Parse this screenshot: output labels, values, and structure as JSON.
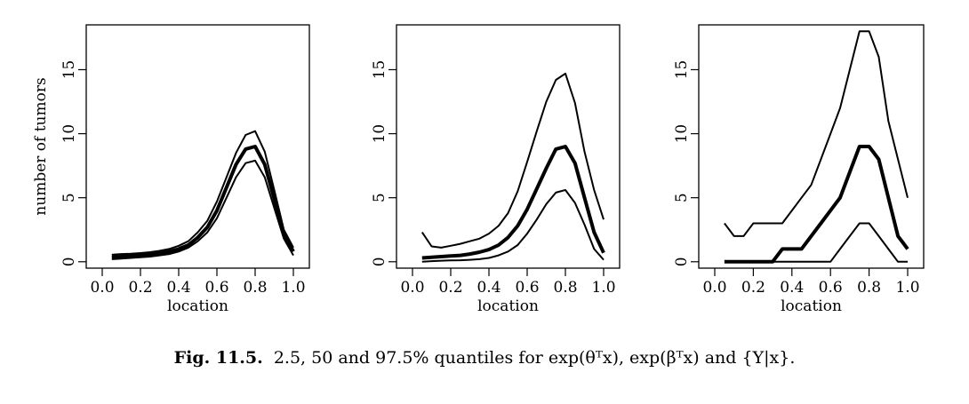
{
  "caption": {
    "label": "Fig. 11.5.",
    "text": "2.5, 50 and 97.5% quantiles for exp(θᵀx), exp(βᵀx) and {Y|x}."
  },
  "chart_data": [
    {
      "type": "line",
      "title": "",
      "xlabel": "location",
      "ylabel": "number of tumors",
      "xlim": [
        0.0,
        1.0
      ],
      "ylim": [
        -0.5,
        18.5
      ],
      "xticks": [
        "0.0",
        "0.2",
        "0.4",
        "0.6",
        "0.8",
        "1.0"
      ],
      "yticks": [
        "0",
        "5",
        "10",
        "15"
      ],
      "x": [
        0.05,
        0.1,
        0.15,
        0.2,
        0.25,
        0.3,
        0.35,
        0.4,
        0.45,
        0.5,
        0.55,
        0.6,
        0.65,
        0.7,
        0.75,
        0.8,
        0.85,
        0.9,
        0.95,
        1.0
      ],
      "series": [
        {
          "role": "lower",
          "values": [
            0.2,
            0.25,
            0.3,
            0.35,
            0.4,
            0.5,
            0.6,
            0.8,
            1.1,
            1.6,
            2.3,
            3.4,
            5.0,
            6.6,
            7.7,
            7.9,
            6.6,
            4.2,
            1.8,
            0.5
          ]
        },
        {
          "role": "median",
          "values": [
            0.35,
            0.4,
            0.45,
            0.5,
            0.55,
            0.65,
            0.8,
            1.0,
            1.3,
            1.9,
            2.7,
            4.0,
            5.8,
            7.6,
            8.8,
            9.0,
            7.6,
            4.9,
            2.1,
            0.8
          ]
        },
        {
          "role": "upper",
          "values": [
            0.55,
            0.6,
            0.62,
            0.68,
            0.75,
            0.85,
            1.0,
            1.25,
            1.6,
            2.3,
            3.2,
            4.7,
            6.6,
            8.5,
            9.9,
            10.2,
            8.6,
            5.6,
            2.5,
            1.1
          ]
        }
      ]
    },
    {
      "type": "line",
      "title": "",
      "xlabel": "location",
      "ylabel": "",
      "xlim": [
        0.0,
        1.0
      ],
      "ylim": [
        -0.5,
        18.5
      ],
      "xticks": [
        "0.0",
        "0.2",
        "0.4",
        "0.6",
        "0.8",
        "1.0"
      ],
      "yticks": [
        "0",
        "5",
        "10",
        "15"
      ],
      "x": [
        0.05,
        0.1,
        0.15,
        0.2,
        0.25,
        0.3,
        0.35,
        0.4,
        0.45,
        0.5,
        0.55,
        0.6,
        0.65,
        0.7,
        0.75,
        0.8,
        0.85,
        0.9,
        0.95,
        1.0
      ],
      "series": [
        {
          "role": "lower",
          "values": [
            0.0,
            0.05,
            0.08,
            0.1,
            0.12,
            0.15,
            0.2,
            0.3,
            0.5,
            0.8,
            1.3,
            2.2,
            3.3,
            4.5,
            5.4,
            5.6,
            4.6,
            2.9,
            1.0,
            0.15
          ]
        },
        {
          "role": "median",
          "values": [
            0.3,
            0.35,
            0.4,
            0.45,
            0.5,
            0.6,
            0.75,
            0.95,
            1.3,
            1.9,
            2.8,
            4.1,
            5.7,
            7.3,
            8.8,
            9.0,
            7.7,
            5.0,
            2.3,
            0.7
          ]
        },
        {
          "role": "upper",
          "values": [
            2.3,
            1.2,
            1.1,
            1.25,
            1.4,
            1.6,
            1.8,
            2.2,
            2.8,
            3.8,
            5.5,
            7.8,
            10.2,
            12.5,
            14.2,
            14.7,
            12.4,
            8.6,
            5.6,
            3.3
          ]
        }
      ]
    },
    {
      "type": "line",
      "title": "",
      "xlabel": "location",
      "ylabel": "",
      "xlim": [
        0.0,
        1.0
      ],
      "ylim": [
        -0.5,
        18.5
      ],
      "xticks": [
        "0.0",
        "0.2",
        "0.4",
        "0.6",
        "0.8",
        "1.0"
      ],
      "yticks": [
        "0",
        "5",
        "10",
        "15"
      ],
      "x": [
        0.05,
        0.1,
        0.15,
        0.2,
        0.25,
        0.3,
        0.35,
        0.4,
        0.45,
        0.5,
        0.55,
        0.6,
        0.65,
        0.7,
        0.75,
        0.8,
        0.85,
        0.9,
        0.95,
        1.0
      ],
      "series": [
        {
          "role": "lower",
          "values": [
            0,
            0,
            0,
            0,
            0,
            0,
            0,
            0,
            0,
            0,
            0,
            0,
            1,
            2,
            3,
            3,
            2,
            1,
            0,
            0
          ]
        },
        {
          "role": "median",
          "values": [
            0,
            0,
            0,
            0,
            0,
            0,
            1,
            1,
            1,
            2,
            3,
            4,
            5,
            7,
            9,
            9,
            8,
            5,
            2,
            1
          ]
        },
        {
          "role": "upper",
          "values": [
            3,
            2,
            2,
            3,
            3,
            3,
            3,
            4,
            5,
            6,
            8,
            10,
            12,
            15,
            18,
            18,
            16,
            11,
            8,
            5
          ]
        }
      ]
    }
  ]
}
